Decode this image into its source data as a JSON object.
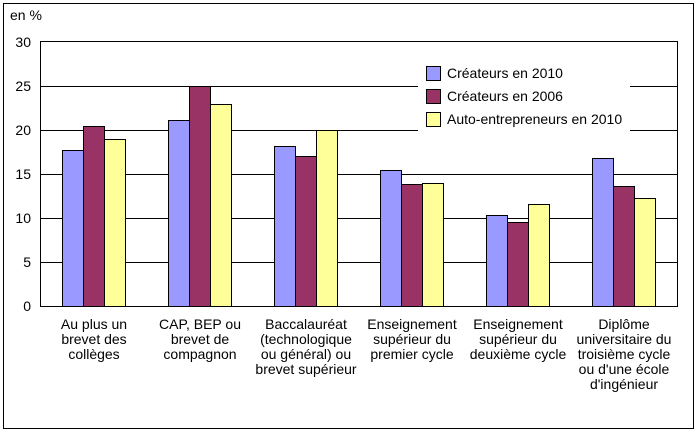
{
  "chart_data": {
    "type": "bar",
    "title": "",
    "unit_label": "en %",
    "xlabel": "",
    "ylabel": "en %",
    "ylim": [
      0,
      30
    ],
    "yticks": [
      0,
      5,
      10,
      15,
      20,
      25,
      30
    ],
    "grid": true,
    "legend_position": "upper-right-inside",
    "categories": [
      "Au plus un\nbrevet des\ncollèges",
      "CAP, BEP ou\nbrevet de\ncompagnon",
      "Baccalauréat\n(technologique\nou général) ou\nbrevet supérieur",
      "Enseignement\nsupérieur du\npremier cycle",
      "Enseignement\nsupérieur du\ndeuxième cycle",
      "Diplôme\nuniversitaire du\ntroisième cycle\nou d'une école\nd'ingénieur"
    ],
    "series": [
      {
        "name": "Créateurs en 2010",
        "color": "#9999FF",
        "values": [
          17.7,
          21.1,
          18.2,
          15.5,
          10.3,
          16.8
        ]
      },
      {
        "name": "Créateurs en 2006",
        "color": "#993366",
        "values": [
          20.5,
          25.0,
          17.1,
          13.9,
          9.5,
          13.6
        ]
      },
      {
        "name": "Auto-entrepreneurs en 2010",
        "color": "#FFFF99",
        "values": [
          19.0,
          23.0,
          20.0,
          14.0,
          11.6,
          12.3
        ]
      }
    ],
    "colors": {
      "axis": "#000000",
      "background": "#FFFFFF"
    }
  }
}
